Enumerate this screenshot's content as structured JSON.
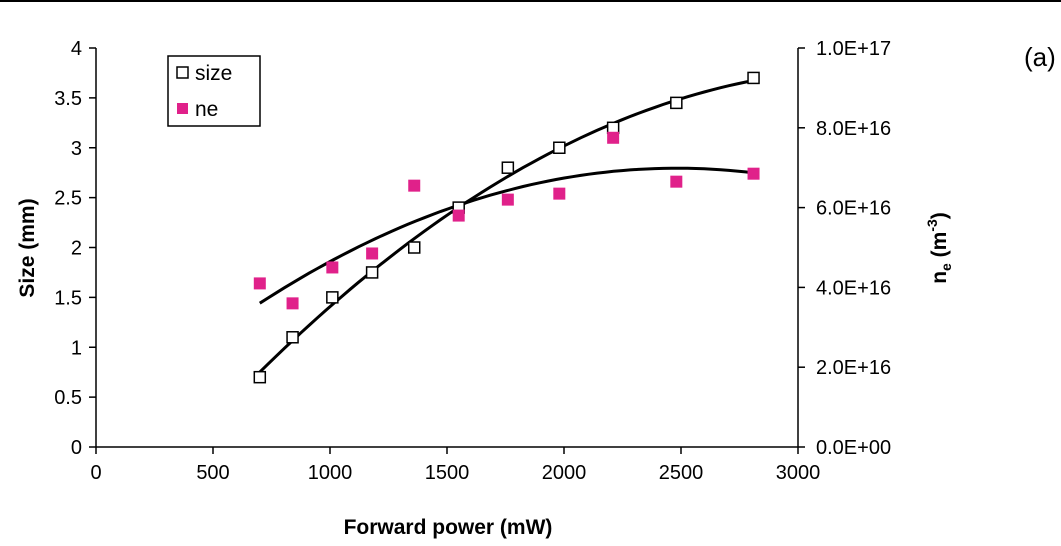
{
  "chart_data": {
    "type": "scatter",
    "panel_label": "(a)",
    "xlabel": "Forward power (mW)",
    "ylabel_left": "Size (mm)",
    "ylabel_right_main": "n",
    "ylabel_right_sub": "e",
    "ylabel_right_unit_open": " (m",
    "ylabel_right_unit_sup": "-3",
    "ylabel_right_unit_close": ")",
    "xlim": [
      0,
      3000
    ],
    "ylim_left": [
      0,
      4
    ],
    "ylim_right": [
      0,
      1e+17
    ],
    "x_ticks": [
      "0",
      "500",
      "1000",
      "1500",
      "2000",
      "2500",
      "3000"
    ],
    "y_ticks_left": [
      "0",
      "0.5",
      "1",
      "1.5",
      "2",
      "2.5",
      "3",
      "3.5",
      "4"
    ],
    "y_ticks_right": [
      "0.0E+00",
      "2.0E+16",
      "4.0E+16",
      "6.0E+16",
      "8.0E+16",
      "1.0E+17"
    ],
    "grid": false,
    "legend_position": "top-left",
    "series": [
      {
        "name": "size",
        "marker": "open-square",
        "color": "#000000",
        "axis": "left",
        "x": [
          700,
          840,
          1010,
          1180,
          1360,
          1550,
          1760,
          1980,
          2210,
          2480,
          2810
        ],
        "y": [
          0.7,
          1.1,
          1.5,
          1.75,
          2.0,
          2.4,
          2.8,
          3.0,
          3.2,
          3.45,
          3.7
        ]
      },
      {
        "name": "ne",
        "marker": "filled-square",
        "color": "#e0218a",
        "axis": "right",
        "x": [
          700,
          840,
          1010,
          1180,
          1360,
          1550,
          1760,
          1980,
          2210,
          2480,
          2810
        ],
        "y": [
          4.1e+16,
          3.6e+16,
          4.5e+16,
          4.85e+16,
          6.55e+16,
          5.8e+16,
          6.2e+16,
          6.35e+16,
          7.75e+16,
          6.65e+16,
          6.85e+16
        ]
      }
    ],
    "trendlines": [
      {
        "series": "size",
        "type": "polynomial",
        "color": "#000000"
      },
      {
        "series": "ne",
        "type": "polynomial",
        "color": "#000000"
      }
    ]
  }
}
